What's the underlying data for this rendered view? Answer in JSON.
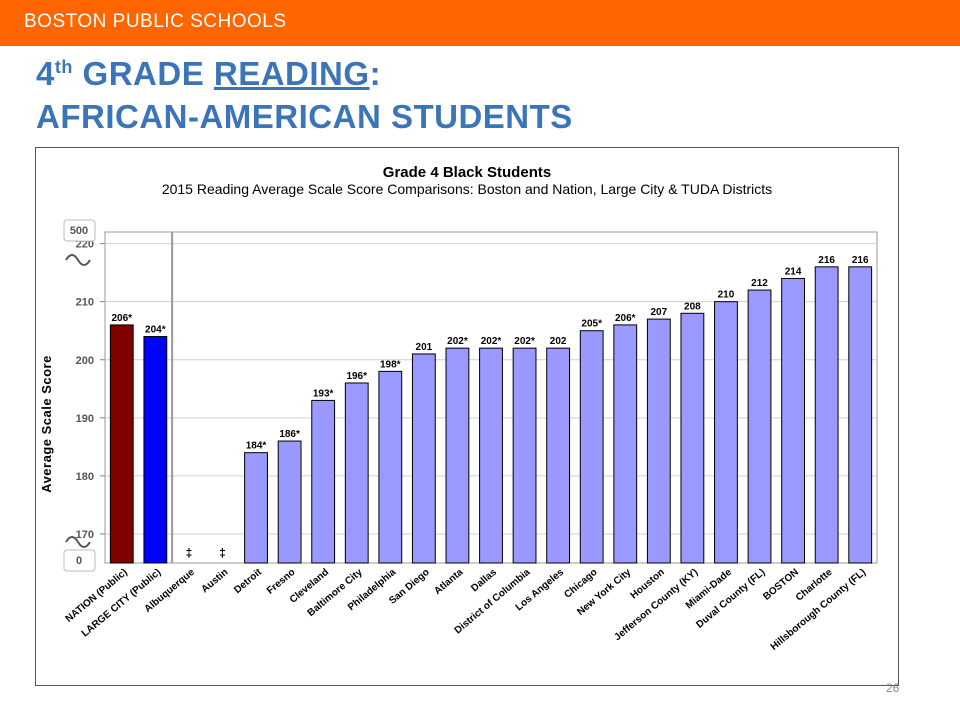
{
  "header": {
    "org_name": "BOSTON PUBLIC SCHOOLS"
  },
  "slide": {
    "title_number": "4",
    "title_superscript": "th",
    "title_grade_word": " GRADE ",
    "title_subject": "READING",
    "title_colon": ":",
    "title_line2": "AFRICAN-AMERICAN STUDENTS",
    "page_number": "26"
  },
  "colors": {
    "header_bar": "#ff6600",
    "title": "#3c74b8",
    "nation_bar": "#800000",
    "large_city_bar": "#0000ff",
    "district_bar": "#9999ff"
  },
  "chart_data": {
    "type": "bar",
    "title": "Grade 4 Black Students",
    "subtitle": "2015 Reading Average Scale Score Comparisons: Boston and Nation, Large City & TUDA Districts",
    "ylabel": "Average Scale Score",
    "ylim": [
      165,
      222
    ],
    "axis_break_top_label": "500",
    "axis_break_bottom_label": "0",
    "y_ticks": [
      "220",
      "210",
      "200",
      "190",
      "180",
      "170"
    ],
    "y_tick_values": [
      220,
      210,
      200,
      190,
      180,
      170
    ],
    "grid": true,
    "not_reported_marker": "‡",
    "categories": [
      "NATION (Public)",
      "LARGE CITY (Public)",
      "Albuquerque",
      "Austin",
      "Detroit",
      "Fresno",
      "Cleveland",
      "Baltimore City",
      "Philadelphia",
      "San Diego",
      "Atlanta",
      "Dallas",
      "District of Columbia",
      "Los Angeles",
      "Chicago",
      "New York City",
      "Houston",
      "Jefferson County (KY)",
      "Miami-Dade",
      "Duval County (FL)",
      "BOSTON",
      "Charlotte",
      "Hillsborough County (FL)"
    ],
    "values": [
      206,
      204,
      null,
      null,
      184,
      186,
      193,
      196,
      198,
      201,
      202,
      202,
      202,
      202,
      205,
      206,
      207,
      208,
      210,
      212,
      214,
      216,
      216
    ],
    "value_labels": [
      "206*",
      "204*",
      "‡",
      "‡",
      "184*",
      "186*",
      "193*",
      "196*",
      "198*",
      "201",
      "202*",
      "202*",
      "202*",
      "202",
      "205*",
      "206*",
      "207",
      "208",
      "210",
      "212",
      "214",
      "216",
      "216"
    ]
  }
}
